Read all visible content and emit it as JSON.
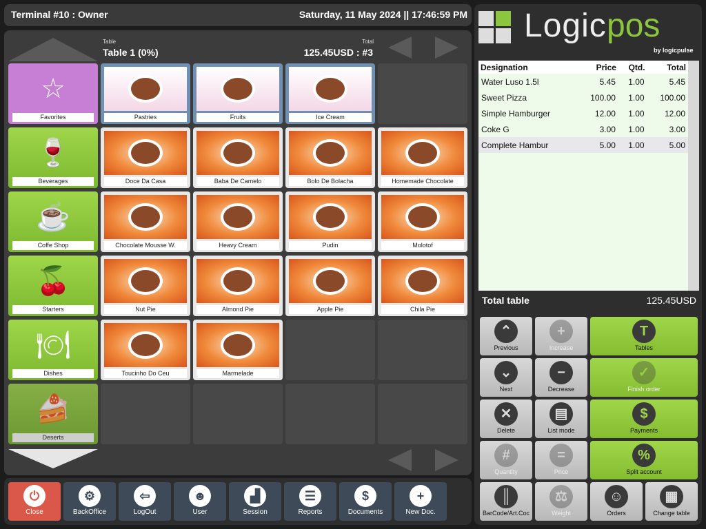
{
  "header": {
    "terminal": "Terminal #10 : Owner",
    "datetime": "Saturday, 11 May 2024 || 17:46:59 PM"
  },
  "order": {
    "table_caption": "Table",
    "table_value": "Table 1 (0%)",
    "total_caption": "Total",
    "total_value": "125.45USD : #3"
  },
  "categories": [
    {
      "label": "Favorites",
      "icon": "star-icon",
      "glyph": "☆",
      "color": "#c77fd6"
    },
    {
      "label": "Beverages",
      "icon": "glass-icon",
      "glyph": "🍷"
    },
    {
      "label": "Coffe Shop",
      "icon": "coffee-cup-icon",
      "glyph": "☕"
    },
    {
      "label": "Starters",
      "icon": "starter-food-icon",
      "glyph": "🍒"
    },
    {
      "label": "Dishes",
      "icon": "plate-icon",
      "glyph": "🍽"
    },
    {
      "label": "Deserts",
      "icon": "cake-icon",
      "glyph": "🍰"
    }
  ],
  "products": [
    [
      "Pastries",
      "Fruits",
      "Ice Cream"
    ],
    [
      "Doce Da Casa",
      "Baba De Camelo",
      "Bolo De Bolacha",
      "Homemade Chocolate"
    ],
    [
      "Chocolate Mousse W.",
      "Heavy Cream",
      "Pudin",
      "Molotof"
    ],
    [
      "Nut Pie",
      "Almond Pie",
      "Apple Pie",
      "Chila Pie"
    ],
    [
      "Toucinho Do Ceu",
      "Marmelade"
    ]
  ],
  "logo": {
    "text_a": "Logic",
    "text_b": "pos",
    "by": "by logicpulse"
  },
  "ticket": {
    "headers": [
      "Designation",
      "Price",
      "Qtd.",
      "Total"
    ],
    "rows": [
      [
        "Water Luso 1.5l",
        "5.45",
        "1.00",
        "5.45"
      ],
      [
        "Sweet Pizza",
        "100.00",
        "1.00",
        "100.00"
      ],
      [
        "Simple Hamburger",
        "12.00",
        "1.00",
        "12.00"
      ],
      [
        "Coke G",
        "3.00",
        "1.00",
        "3.00"
      ],
      [
        "Complete Hambur",
        "5.00",
        "1.00",
        "5.00"
      ]
    ],
    "total_label": "Total table",
    "total_value": "125.45USD"
  },
  "actions": [
    {
      "label": "Previous",
      "glyph": "⌃",
      "icon": "chevron-up-icon"
    },
    {
      "label": "Increase",
      "glyph": "+",
      "icon": "plus-icon",
      "disabled": true
    },
    {
      "label": "Tables",
      "glyph": "T",
      "icon": "table-icon",
      "green": true
    },
    {
      "label": "Next",
      "glyph": "⌄",
      "icon": "chevron-down-icon"
    },
    {
      "label": "Decrease",
      "glyph": "−",
      "icon": "minus-icon"
    },
    {
      "label": "Finish order",
      "glyph": "✓",
      "icon": "finish-order-icon",
      "green": true,
      "disabled": true
    },
    {
      "label": "Delete",
      "glyph": "✕",
      "icon": "delete-icon"
    },
    {
      "label": "List mode",
      "glyph": "▤",
      "icon": "list-mode-icon"
    },
    {
      "label": "Payments",
      "glyph": "$",
      "icon": "dollar-icon",
      "green": true
    },
    {
      "label": "Quantity",
      "glyph": "#",
      "icon": "quantity-icon",
      "disabled": true
    },
    {
      "label": "Price",
      "glyph": "=",
      "icon": "price-icon",
      "disabled": true
    },
    {
      "label": "Split account",
      "glyph": "%",
      "icon": "split-account-icon",
      "green": true
    },
    {
      "label": "BarCode/Art.Coc",
      "glyph": "║",
      "icon": "barcode-icon"
    },
    {
      "label": "Weight",
      "glyph": "⚖",
      "icon": "weight-icon",
      "disabled": true
    },
    {
      "label": "Orders",
      "glyph": "☺",
      "icon": "orders-icon"
    },
    {
      "label": "Change table",
      "glyph": "▦",
      "icon": "change-table-icon"
    }
  ],
  "toolbar": [
    {
      "label": "Close",
      "glyph": "⏻",
      "icon": "power-icon"
    },
    {
      "label": "BackOffice",
      "glyph": "⚙",
      "icon": "gears-icon"
    },
    {
      "label": "LogOut",
      "glyph": "⇦",
      "icon": "logout-icon"
    },
    {
      "label": "User",
      "glyph": "☻",
      "icon": "user-icon"
    },
    {
      "label": "Session",
      "glyph": "▟",
      "icon": "cash-register-icon"
    },
    {
      "label": "Reports",
      "glyph": "☰",
      "icon": "clipboard-icon"
    },
    {
      "label": "Documents",
      "glyph": "$",
      "icon": "document-icon"
    },
    {
      "label": "New Doc.",
      "glyph": "+",
      "icon": "new-document-icon"
    }
  ],
  "colors": {
    "green": "#8cc63f",
    "close": "#d9584a",
    "toolbar": "#3e4a58",
    "favorites": "#c77fd6"
  }
}
